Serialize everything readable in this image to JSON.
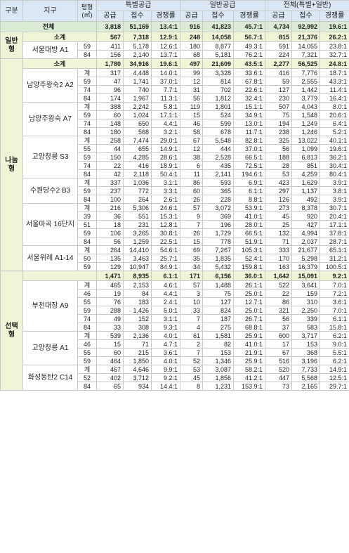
{
  "headers": {
    "type": "구분",
    "district": "지구",
    "area": "평형\n(㎡)",
    "special": "특별공급",
    "general": "일반공급",
    "total": "전체(특별+일반)",
    "supply": "공급",
    "receipt": "접수",
    "rate": "경쟁률"
  },
  "grand_total": {
    "label": "전체",
    "values": [
      "3,818",
      "51,169",
      "13.4:1",
      "916",
      "41,823",
      "45.7:1",
      "4,734",
      "92,992",
      "19.6:1"
    ]
  },
  "groups": [
    {
      "type": "일반형",
      "subtotal": {
        "label": "소계",
        "values": [
          "567",
          "7,318",
          "12.9:1",
          "248",
          "14,058",
          "56.7:1",
          "815",
          "21,376",
          "26.2:1"
        ]
      },
      "districts": [
        {
          "name": "서울대방 A1",
          "rows": [
            {
              "area": "59",
              "values": [
                "411",
                "5,178",
                "12.6:1",
                "180",
                "8,877",
                "49.3:1",
                "591",
                "14,055",
                "23.8:1"
              ]
            },
            {
              "area": "84",
              "values": [
                "156",
                "2,140",
                "13.7:1",
                "68",
                "5,181",
                "76.2:1",
                "224",
                "7,321",
                "32.7:1"
              ]
            }
          ]
        }
      ]
    },
    {
      "type": "나눔형",
      "subtotal": {
        "label": "소계",
        "values": [
          "1,780",
          "34,916",
          "19.6:1",
          "497",
          "21,609",
          "43.5:1",
          "2,277",
          "56,525",
          "24.8:1"
        ]
      },
      "districts": [
        {
          "name": "남양주왕숙2 A2",
          "rows": [
            {
              "area": "계",
              "values": [
                "317",
                "4,448",
                "14.0:1",
                "99",
                "3,328",
                "33.6:1",
                "416",
                "7,776",
                "18.7:1"
              ]
            },
            {
              "area": "59",
              "values": [
                "47",
                "1,741",
                "37.0:1",
                "12",
                "814",
                "67.8:1",
                "59",
                "2,555",
                "43.3:1"
              ]
            },
            {
              "area": "74",
              "values": [
                "96",
                "740",
                "7.7:1",
                "31",
                "702",
                "22.6:1",
                "127",
                "1,442",
                "11.4:1"
              ]
            },
            {
              "area": "84",
              "values": [
                "174",
                "1,967",
                "11.3:1",
                "56",
                "1,812",
                "32.4:1",
                "230",
                "3,779",
                "16.4:1"
              ]
            }
          ]
        },
        {
          "name": "남양주왕숙 A7",
          "rows": [
            {
              "area": "계",
              "values": [
                "388",
                "2,242",
                "5.8:1",
                "119",
                "1,801",
                "15.1:1",
                "507",
                "4,043",
                "8.0:1"
              ]
            },
            {
              "area": "59",
              "values": [
                "60",
                "1,024",
                "17.1:1",
                "15",
                "524",
                "34.9:1",
                "75",
                "1,548",
                "20.6:1"
              ]
            },
            {
              "area": "74",
              "values": [
                "148",
                "650",
                "4.4:1",
                "46",
                "599",
                "13.0:1",
                "194",
                "1,249",
                "6.4:1"
              ]
            },
            {
              "area": "84",
              "values": [
                "180",
                "568",
                "3.2:1",
                "58",
                "678",
                "11.7:1",
                "238",
                "1,246",
                "5.2:1"
              ]
            }
          ]
        },
        {
          "name": "고양창릉 S3",
          "rows": [
            {
              "area": "계",
              "values": [
                "258",
                "7,474",
                "29.0:1",
                "67",
                "5,548",
                "82.8:1",
                "325",
                "13,022",
                "40.1:1"
              ]
            },
            {
              "area": "55",
              "values": [
                "44",
                "655",
                "14.9:1",
                "12",
                "444",
                "37.0:1",
                "56",
                "1,099",
                "19.6:1"
              ]
            },
            {
              "area": "59",
              "values": [
                "150",
                "4,285",
                "28.6:1",
                "38",
                "2,528",
                "66.5:1",
                "188",
                "6,813",
                "36.2:1"
              ]
            },
            {
              "area": "74",
              "values": [
                "22",
                "416",
                "18.9:1",
                "6",
                "435",
                "72.5:1",
                "28",
                "851",
                "30.4:1"
              ]
            },
            {
              "area": "84",
              "values": [
                "42",
                "2,118",
                "50.4:1",
                "11",
                "2,141",
                "194.6:1",
                "53",
                "4,259",
                "80.4:1"
              ]
            }
          ]
        },
        {
          "name": "수원당수2 B3",
          "rows": [
            {
              "area": "계",
              "values": [
                "337",
                "1,036",
                "3.1:1",
                "86",
                "593",
                "6.9:1",
                "423",
                "1,629",
                "3.9:1"
              ]
            },
            {
              "area": "59",
              "values": [
                "237",
                "772",
                "3.3:1",
                "60",
                "365",
                "6.1:1",
                "297",
                "1,137",
                "3.8:1"
              ]
            },
            {
              "area": "84",
              "values": [
                "100",
                "264",
                "2.6:1",
                "26",
                "228",
                "8.8:1",
                "126",
                "492",
                "3.9:1"
              ]
            }
          ]
        },
        {
          "name": "서울마곡 16단지",
          "rows": [
            {
              "area": "계",
              "values": [
                "216",
                "5,306",
                "24.6:1",
                "57",
                "3,072",
                "53.9:1",
                "273",
                "8,378",
                "30.7:1"
              ]
            },
            {
              "area": "39",
              "values": [
                "36",
                "551",
                "15.3:1",
                "9",
                "369",
                "41.0:1",
                "45",
                "920",
                "20.4:1"
              ]
            },
            {
              "area": "51",
              "values": [
                "18",
                "231",
                "12.8:1",
                "7",
                "196",
                "28.0:1",
                "25",
                "427",
                "17.1:1"
              ]
            },
            {
              "area": "59",
              "values": [
                "106",
                "3,265",
                "30.8:1",
                "26",
                "1,729",
                "66.5:1",
                "132",
                "4,994",
                "37.8:1"
              ]
            },
            {
              "area": "84",
              "values": [
                "56",
                "1,259",
                "22.5:1",
                "15",
                "778",
                "51.9:1",
                "71",
                "2,037",
                "28.7:1"
              ]
            }
          ]
        },
        {
          "name": "서울위례 A1-14",
          "rows": [
            {
              "area": "계",
              "values": [
                "264",
                "14,410",
                "54.6:1",
                "69",
                "7,267",
                "105.3:1",
                "333",
                "21,677",
                "65.1:1"
              ]
            },
            {
              "area": "50",
              "values": [
                "135",
                "3,463",
                "25.7:1",
                "35",
                "1,835",
                "52.4:1",
                "170",
                "5,298",
                "31.2:1"
              ]
            },
            {
              "area": "59",
              "values": [
                "129",
                "10,947",
                "84.9:1",
                "34",
                "5,432",
                "159.8:1",
                "163",
                "16,379",
                "100.5:1"
              ]
            }
          ]
        }
      ]
    },
    {
      "type": "선택형",
      "subtotal": {
        "label": "",
        "values": [
          "1,471",
          "8,935",
          "6.1:1",
          "171",
          "6,156",
          "36.0:1",
          "1,642",
          "15,091",
          "9.2:1"
        ]
      },
      "districts": [
        {
          "name": "부천대장 A9",
          "rows": [
            {
              "area": "계",
              "values": [
                "465",
                "2,153",
                "4.6:1",
                "57",
                "1,488",
                "26.1:1",
                "522",
                "3,641",
                "7.0:1"
              ]
            },
            {
              "area": "46",
              "values": [
                "19",
                "84",
                "4.4:1",
                "3",
                "75",
                "25.0:1",
                "22",
                "159",
                "7.2:1"
              ]
            },
            {
              "area": "55",
              "values": [
                "76",
                "183",
                "2.4:1",
                "10",
                "127",
                "12.7:1",
                "86",
                "310",
                "3.6:1"
              ]
            },
            {
              "area": "59",
              "values": [
                "288",
                "1,426",
                "5.0:1",
                "33",
                "824",
                "25.0:1",
                "321",
                "2,250",
                "7.0:1"
              ]
            },
            {
              "area": "74",
              "values": [
                "49",
                "152",
                "3.1:1",
                "7",
                "187",
                "26.7:1",
                "56",
                "339",
                "6.1:1"
              ]
            },
            {
              "area": "84",
              "values": [
                "33",
                "308",
                "9.3:1",
                "4",
                "275",
                "68.8:1",
                "37",
                "583",
                "15.8:1"
              ]
            }
          ]
        },
        {
          "name": "고양창릉 A1",
          "rows": [
            {
              "area": "계",
              "values": [
                "539",
                "2,136",
                "4.0:1",
                "61",
                "1,581",
                "25.9:1",
                "600",
                "3,717",
                "6.2:1"
              ]
            },
            {
              "area": "46",
              "values": [
                "15",
                "71",
                "4.7:1",
                "2",
                "82",
                "41.0:1",
                "17",
                "153",
                "9.0:1"
              ]
            },
            {
              "area": "55",
              "values": [
                "60",
                "215",
                "3.6:1",
                "7",
                "153",
                "21.9:1",
                "67",
                "368",
                "5.5:1"
              ]
            },
            {
              "area": "59",
              "values": [
                "464",
                "1,850",
                "4.0:1",
                "52",
                "1,346",
                "25.9:1",
                "516",
                "3,196",
                "6.2:1"
              ]
            }
          ]
        },
        {
          "name": "화성동탄2 C14",
          "rows": [
            {
              "area": "계",
              "values": [
                "467",
                "4,646",
                "9.9:1",
                "53",
                "3,087",
                "58.2:1",
                "520",
                "7,733",
                "14.9:1"
              ]
            },
            {
              "area": "52",
              "values": [
                "402",
                "3,712",
                "9.2:1",
                "45",
                "1,856",
                "41.2:1",
                "447",
                "5,568",
                "12.5:1"
              ]
            },
            {
              "area": "84",
              "values": [
                "65",
                "934",
                "14.4:1",
                "8",
                "1,231",
                "153.9:1",
                "73",
                "2,165",
                "29.7:1"
              ]
            }
          ]
        }
      ]
    }
  ]
}
